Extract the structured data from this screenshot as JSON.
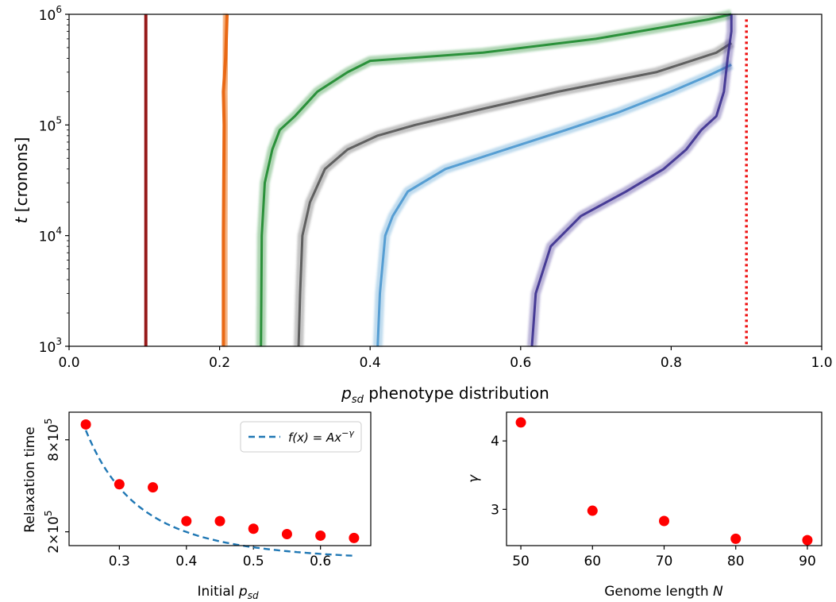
{
  "chart_data": [
    {
      "type": "heatmap",
      "xlabel_parts": {
        "var": "p",
        "sub": "sd",
        "rest": " phenotype distribution"
      },
      "ylabel_parts": {
        "var": "t",
        "rest": " [cronons]"
      },
      "xlim": [
        0.0,
        1.0
      ],
      "ylim": [
        1000,
        1000000
      ],
      "yscale": "log",
      "xticks": [
        0.0,
        0.2,
        0.4,
        0.6,
        0.8,
        1.0
      ],
      "xtick_labels": [
        "0.0",
        "0.2",
        "0.4",
        "0.6",
        "0.8",
        "1.0"
      ],
      "yticks": [
        1000,
        10000,
        100000,
        1000000
      ],
      "ytick_labels": [
        {
          "base": "10",
          "exp": "3"
        },
        {
          "base": "10",
          "exp": "4"
        },
        {
          "base": "10",
          "exp": "5"
        },
        {
          "base": "10",
          "exp": "6"
        }
      ],
      "reference_line": {
        "x": 0.9,
        "style": "dotted",
        "color": "#ee1111"
      },
      "series": [
        {
          "color": "#8b0000",
          "points": [
            [
              0.102,
              1000
            ],
            [
              0.102,
              10000
            ],
            [
              0.102,
              100000
            ],
            [
              0.102,
              1000000
            ]
          ]
        },
        {
          "color": "#e8600a",
          "points": [
            [
              0.205,
              1000
            ],
            [
              0.205,
              10000
            ],
            [
              0.206,
              100000
            ],
            [
              0.205,
              200000
            ],
            [
              0.208,
              400000
            ],
            [
              0.21,
              1000000
            ]
          ]
        },
        {
          "color": "#1d8a2e",
          "points": [
            [
              0.255,
              1000
            ],
            [
              0.256,
              10000
            ],
            [
              0.26,
              30000
            ],
            [
              0.27,
              60000
            ],
            [
              0.28,
              90000
            ],
            [
              0.3,
              120000
            ],
            [
              0.33,
              200000
            ],
            [
              0.37,
              300000
            ],
            [
              0.4,
              380000
            ],
            [
              0.55,
              450000
            ],
            [
              0.7,
              600000
            ],
            [
              0.85,
              900000
            ],
            [
              0.88,
              1000000
            ]
          ]
        },
        {
          "color": "#555555",
          "points": [
            [
              0.305,
              1000
            ],
            [
              0.307,
              3000
            ],
            [
              0.31,
              10000
            ],
            [
              0.32,
              20000
            ],
            [
              0.34,
              40000
            ],
            [
              0.37,
              60000
            ],
            [
              0.41,
              80000
            ],
            [
              0.46,
              100000
            ],
            [
              0.55,
              140000
            ],
            [
              0.65,
              200000
            ],
            [
              0.78,
              300000
            ],
            [
              0.86,
              450000
            ],
            [
              0.88,
              550000
            ]
          ]
        },
        {
          "color": "#4a97cf",
          "points": [
            [
              0.41,
              1000
            ],
            [
              0.413,
              3000
            ],
            [
              0.42,
              10000
            ],
            [
              0.43,
              15000
            ],
            [
              0.45,
              25000
            ],
            [
              0.5,
              40000
            ],
            [
              0.58,
              60000
            ],
            [
              0.66,
              90000
            ],
            [
              0.73,
              130000
            ],
            [
              0.8,
              200000
            ],
            [
              0.85,
              280000
            ],
            [
              0.88,
              350000
            ]
          ]
        },
        {
          "color": "#3b2f8f",
          "points": [
            [
              0.615,
              1000
            ],
            [
              0.62,
              3000
            ],
            [
              0.64,
              8000
            ],
            [
              0.68,
              15000
            ],
            [
              0.74,
              25000
            ],
            [
              0.79,
              40000
            ],
            [
              0.82,
              60000
            ],
            [
              0.84,
              90000
            ],
            [
              0.86,
              120000
            ],
            [
              0.87,
              200000
            ],
            [
              0.875,
              400000
            ],
            [
              0.88,
              700000
            ],
            [
              0.88,
              1000000
            ]
          ]
        }
      ]
    },
    {
      "type": "scatter",
      "xlabel_parts": {
        "pre": "Initial ",
        "var": "p",
        "sub": "sd"
      },
      "ylabel": "Relaxation time",
      "xlim": [
        0.225,
        0.675
      ],
      "ylim": [
        110000,
        980000
      ],
      "xticks": [
        0.3,
        0.4,
        0.5,
        0.6
      ],
      "xtick_labels": [
        "0.3",
        "0.4",
        "0.5",
        "0.6"
      ],
      "yticks": [
        200000,
        800000
      ],
      "ytick_labels": [
        {
          "coef": "2×10",
          "exp": "5"
        },
        {
          "coef": "8×10",
          "exp": "5"
        }
      ],
      "x": [
        0.25,
        0.3,
        0.35,
        0.4,
        0.45,
        0.5,
        0.55,
        0.6,
        0.65
      ],
      "y": [
        900000,
        510000,
        490000,
        270000,
        270000,
        220000,
        185000,
        175000,
        160000
      ],
      "fit": {
        "A": 11400,
        "gamma": 3.12
      },
      "legend": {
        "label_prefix": "f(x) = Ax",
        "label_exp": "−γ",
        "position": "top-right"
      },
      "marker_color": "#ff0000",
      "fit_color": "#1f77b4"
    },
    {
      "type": "scatter",
      "xlabel_parts": {
        "pre": "Genome length ",
        "var": "N"
      },
      "ylabel": "γ",
      "xlim": [
        48,
        92
      ],
      "ylim": [
        2.47,
        4.42
      ],
      "xticks": [
        50,
        60,
        70,
        80,
        90
      ],
      "xtick_labels": [
        "50",
        "60",
        "70",
        "80",
        "90"
      ],
      "yticks": [
        3,
        4
      ],
      "ytick_labels": [
        "3",
        "4"
      ],
      "x": [
        50,
        60,
        70,
        80,
        90
      ],
      "y": [
        4.27,
        2.98,
        2.83,
        2.57,
        2.55
      ],
      "marker_color": "#ff0000"
    }
  ]
}
